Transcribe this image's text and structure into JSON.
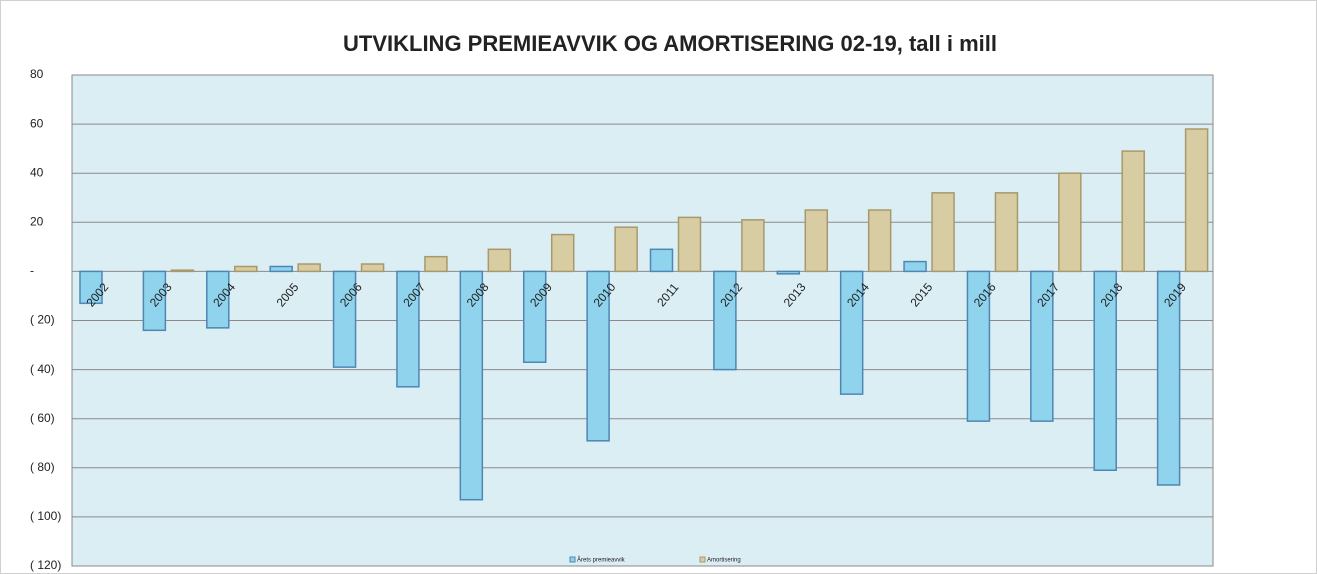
{
  "chart_data": {
    "type": "bar",
    "title": "UTVIKLING PREMIEAVVIK OG AMORTISERING 02-19, tall i mill",
    "categories": [
      "2002",
      "2003",
      "2004",
      "2005",
      "2006",
      "2007",
      "2008",
      "2009",
      "2010",
      "2011",
      "2012",
      "2013",
      "2014",
      "2015",
      "2016",
      "2017",
      "2018",
      "2019"
    ],
    "series": [
      {
        "name": "Årets premieavvik",
        "color": "#8fd4ec",
        "values": [
          -13,
          -24,
          -23,
          2,
          -39,
          -47,
          -93,
          -37,
          -69,
          9,
          -40,
          -1,
          -50,
          4,
          -61,
          -61,
          -81,
          -87
        ]
      },
      {
        "name": "Amortisering",
        "color": "#d8cca3",
        "values": [
          0,
          0.5,
          2,
          3,
          3,
          6,
          9,
          15,
          18,
          22,
          21,
          25,
          25,
          32,
          32,
          40,
          49,
          58
        ]
      }
    ],
    "ylim": [
      -120,
      80
    ],
    "yticks": [
      {
        "value": -120,
        "label": "( 120)"
      },
      {
        "value": -100,
        "label": "( 100)"
      },
      {
        "value": -80,
        "label": "( 80)"
      },
      {
        "value": -60,
        "label": "( 60)"
      },
      {
        "value": -40,
        "label": "( 40)"
      },
      {
        "value": -20,
        "label": "( 20)"
      },
      {
        "value": 0,
        "label": "-"
      },
      20,
      40,
      60,
      80
    ],
    "grid": true,
    "legend": "bottom"
  }
}
